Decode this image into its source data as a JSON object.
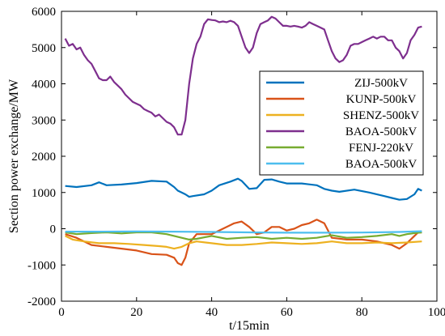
{
  "chart_data": {
    "type": "line",
    "title": "",
    "xlabel": "t/15min",
    "ylabel": "Section power exchange/MW",
    "xlim": [
      0,
      100
    ],
    "ylim": [
      -2000,
      6000
    ],
    "xticks": [
      "0",
      "20",
      "40",
      "60",
      "80",
      "100"
    ],
    "yticks": [
      "-2000",
      "-1000",
      "0",
      "1000",
      "2000",
      "3000",
      "4000",
      "5000",
      "6000"
    ],
    "legend_position": "right",
    "series": [
      {
        "name": "ZIJ-500kV",
        "color": "#0072BD",
        "x": [
          1,
          4,
          8,
          10,
          12,
          16,
          20,
          24,
          28,
          30,
          31,
          32,
          33,
          34,
          35,
          38,
          40,
          42,
          45,
          47,
          48,
          50,
          52,
          54,
          56,
          58,
          60,
          64,
          68,
          70,
          72,
          74,
          78,
          82,
          86,
          88,
          90,
          92,
          94,
          95,
          96
        ],
        "y": [
          1180,
          1150,
          1200,
          1280,
          1200,
          1220,
          1260,
          1320,
          1300,
          1150,
          1050,
          1000,
          950,
          880,
          900,
          950,
          1050,
          1200,
          1300,
          1380,
          1320,
          1100,
          1120,
          1350,
          1360,
          1300,
          1250,
          1250,
          1200,
          1100,
          1050,
          1020,
          1080,
          1000,
          900,
          850,
          800,
          820,
          950,
          1100,
          1050
        ]
      },
      {
        "name": "KUNP-500kV",
        "color": "#D95319",
        "x": [
          1,
          4,
          8,
          12,
          16,
          20,
          24,
          28,
          30,
          31,
          32,
          33,
          34,
          36,
          38,
          40,
          42,
          44,
          46,
          48,
          50,
          52,
          54,
          56,
          58,
          60,
          62,
          64,
          66,
          68,
          70,
          72,
          76,
          80,
          84,
          88,
          90,
          92,
          94,
          95,
          96
        ],
        "y": [
          -150,
          -250,
          -450,
          -500,
          -550,
          -600,
          -700,
          -720,
          -800,
          -950,
          -1000,
          -800,
          -400,
          -150,
          -150,
          -150,
          -50,
          50,
          150,
          200,
          50,
          -150,
          -100,
          50,
          50,
          -50,
          0,
          100,
          150,
          250,
          150,
          -250,
          -300,
          -300,
          -350,
          -450,
          -550,
          -400,
          -200,
          -100,
          -100
        ]
      },
      {
        "name": "SHENZ-500kV",
        "color": "#EDB120",
        "x": [
          1,
          3,
          6,
          10,
          14,
          18,
          22,
          26,
          28,
          30,
          32,
          34,
          36,
          40,
          44,
          48,
          52,
          56,
          60,
          64,
          68,
          72,
          76,
          80,
          84,
          88,
          92,
          96
        ],
        "y": [
          -200,
          -300,
          -350,
          -400,
          -400,
          -420,
          -450,
          -480,
          -500,
          -550,
          -500,
          -400,
          -350,
          -400,
          -450,
          -450,
          -420,
          -380,
          -400,
          -420,
          -400,
          -350,
          -400,
          -400,
          -380,
          -400,
          -380,
          -350
        ]
      },
      {
        "name": "BAOA-500kV",
        "color": "#7E2F8E",
        "x": [
          1,
          2,
          3,
          4,
          5,
          6,
          7,
          8,
          9,
          10,
          11,
          12,
          13,
          14,
          15,
          16,
          17,
          18,
          19,
          20,
          21,
          22,
          23,
          24,
          25,
          26,
          27,
          28,
          29,
          30,
          31,
          32,
          33,
          34,
          35,
          36,
          37,
          38,
          39,
          40,
          41,
          42,
          43,
          44,
          45,
          46,
          47,
          48,
          49,
          50,
          51,
          52,
          53,
          54,
          55,
          56,
          57,
          58,
          59,
          60,
          61,
          62,
          63,
          64,
          65,
          66,
          67,
          68,
          69,
          70,
          71,
          72,
          73,
          74,
          75,
          76,
          77,
          78,
          79,
          80,
          81,
          82,
          83,
          84,
          85,
          86,
          87,
          88,
          89,
          90,
          91,
          92,
          93,
          94,
          95,
          96
        ],
        "y": [
          5250,
          5050,
          5100,
          4950,
          5000,
          4800,
          4650,
          4550,
          4350,
          4150,
          4100,
          4100,
          4200,
          4050,
          3950,
          3850,
          3700,
          3600,
          3500,
          3450,
          3400,
          3300,
          3250,
          3200,
          3100,
          3150,
          3050,
          2950,
          2900,
          2800,
          2600,
          2600,
          3000,
          4000,
          4700,
          5100,
          5300,
          5650,
          5780,
          5760,
          5750,
          5700,
          5720,
          5700,
          5740,
          5700,
          5600,
          5300,
          5000,
          4850,
          5000,
          5400,
          5650,
          5700,
          5750,
          5850,
          5800,
          5700,
          5600,
          5600,
          5580,
          5600,
          5580,
          5550,
          5600,
          5700,
          5650,
          5600,
          5550,
          5500,
          5200,
          4900,
          4700,
          4600,
          4650,
          4800,
          5050,
          5100,
          5100,
          5150,
          5200,
          5250,
          5300,
          5250,
          5300,
          5300,
          5200,
          5200,
          5000,
          4900,
          4700,
          4850,
          5200,
          5350,
          5550,
          5580
        ]
      },
      {
        "name": "FENJ-220kV",
        "color": "#77AC30",
        "x": [
          1,
          4,
          8,
          12,
          16,
          20,
          24,
          28,
          30,
          32,
          34,
          36,
          40,
          44,
          48,
          52,
          56,
          60,
          64,
          68,
          72,
          76,
          80,
          84,
          88,
          90,
          92,
          94,
          96
        ],
        "y": [
          -100,
          -150,
          -120,
          -100,
          -130,
          -100,
          -100,
          -150,
          -200,
          -250,
          -300,
          -280,
          -200,
          -280,
          -250,
          -230,
          -280,
          -250,
          -280,
          -250,
          -180,
          -250,
          -230,
          -200,
          -150,
          -200,
          -150,
          -120,
          -100
        ]
      },
      {
        "name": "BAOA-500kV",
        "color": "#4DBEEE",
        "x": [
          1,
          10,
          20,
          30,
          40,
          50,
          60,
          70,
          80,
          90,
          96
        ],
        "y": [
          -80,
          -80,
          -75,
          -80,
          -90,
          -100,
          -110,
          -110,
          -105,
          -90,
          -70
        ]
      }
    ]
  }
}
